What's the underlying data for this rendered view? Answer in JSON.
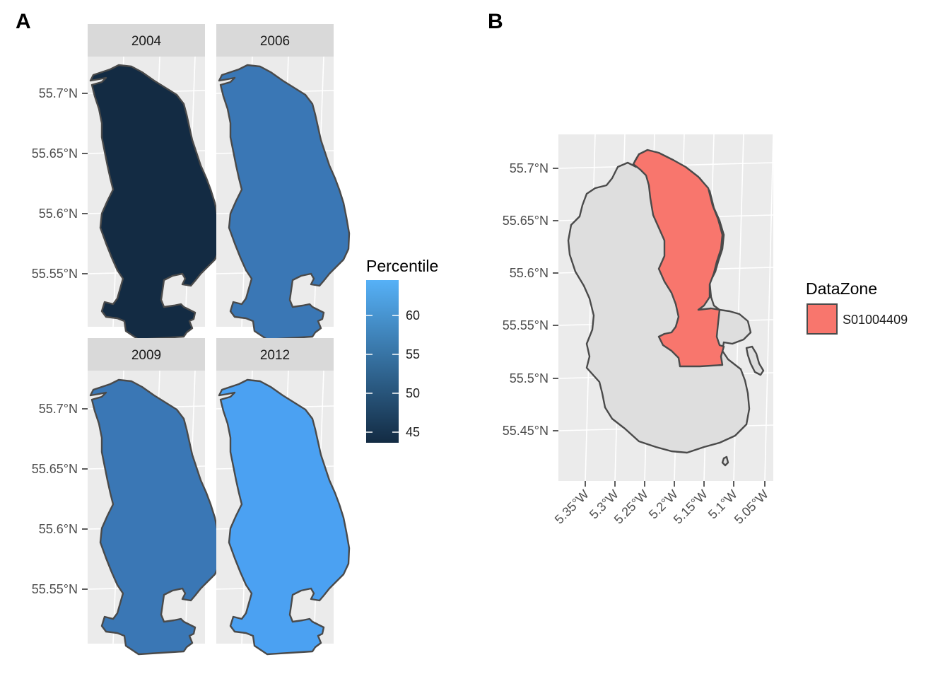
{
  "panel_a": {
    "label": "A",
    "facets": [
      {
        "year": "2004",
        "percentile": 43.5,
        "fill": "#132B43"
      },
      {
        "year": "2006",
        "percentile": 57.5,
        "fill": "#3A77B5"
      },
      {
        "year": "2009",
        "percentile": 57.5,
        "fill": "#3A77B5"
      },
      {
        "year": "2012",
        "percentile": 64.5,
        "fill": "#4BA1F2"
      }
    ],
    "y_ticks": [
      "55.7°N",
      "55.65°N",
      "55.6°N",
      "55.55°N"
    ],
    "legend": {
      "title": "Percentile",
      "ticks": [
        "60",
        "55",
        "50",
        "45"
      ],
      "colors": {
        "low": "#132B43",
        "high": "#56B1F7"
      }
    }
  },
  "panel_b": {
    "label": "B",
    "y_ticks": [
      "55.7°N",
      "55.65°N",
      "55.6°N",
      "55.55°N",
      "55.5°N",
      "55.45°N"
    ],
    "x_ticks": [
      "5.35°W",
      "5.3°W",
      "5.25°W",
      "5.2°W",
      "5.15°W",
      "5.1°W",
      "5.05°W"
    ],
    "island_fill": "#DEDEDE",
    "legend": {
      "title": "DataZone",
      "entries": [
        {
          "label": "S01004409",
          "color": "#F8766D"
        }
      ]
    }
  },
  "chart_data": [
    {
      "type": "choropleth-facets",
      "facets": [
        "2004",
        "2006",
        "2009",
        "2012"
      ],
      "values": [
        43.5,
        57.5,
        57.5,
        64.5
      ],
      "legend_title": "Percentile",
      "color_range": [
        43.5,
        64.5
      ],
      "y_ticks": [
        "55.7°N",
        "55.65°N",
        "55.6°N",
        "55.55°N"
      ]
    },
    {
      "type": "map",
      "highlighted": "S01004409",
      "legend_title": "DataZone",
      "x_ticks": [
        "5.35°W",
        "5.3°W",
        "5.25°W",
        "5.2°W",
        "5.15°W",
        "5.1°W",
        "5.05°W"
      ],
      "y_ticks": [
        "55.7°N",
        "55.65°N",
        "55.6°N",
        "55.55°N",
        "55.5°N",
        "55.45°N"
      ]
    }
  ]
}
